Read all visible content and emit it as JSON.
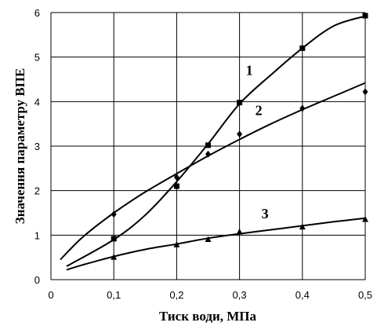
{
  "chart_data": {
    "type": "scatter",
    "xlabel": "Тиск води, МПа",
    "ylabel": "Значення параметру ВПЕ",
    "xlim": [
      0,
      0.5
    ],
    "ylim": [
      0,
      6
    ],
    "x_ticks": [
      0,
      0.1,
      0.2,
      0.3,
      0.4,
      0.5
    ],
    "x_tick_labels": [
      "0",
      "0,1",
      "0,2",
      "0,3",
      "0,4",
      "0,5"
    ],
    "y_ticks": [
      0,
      1,
      2,
      3,
      4,
      5,
      6
    ],
    "y_tick_labels": [
      "0",
      "1",
      "2",
      "3",
      "4",
      "5",
      "6"
    ],
    "grid": true,
    "series": [
      {
        "name": "1",
        "marker": "square",
        "points": [
          {
            "x": 0.1,
            "y": 0.92
          },
          {
            "x": 0.2,
            "y": 2.1
          },
          {
            "x": 0.25,
            "y": 3.02
          },
          {
            "x": 0.3,
            "y": 3.98
          },
          {
            "x": 0.4,
            "y": 5.2
          },
          {
            "x": 0.5,
            "y": 5.93
          }
        ],
        "trend": [
          {
            "x": 0.025,
            "y": 0.3
          },
          {
            "x": 0.1,
            "y": 0.9
          },
          {
            "x": 0.15,
            "y": 1.45
          },
          {
            "x": 0.2,
            "y": 2.2
          },
          {
            "x": 0.25,
            "y": 3.05
          },
          {
            "x": 0.3,
            "y": 3.95
          },
          {
            "x": 0.35,
            "y": 4.6
          },
          {
            "x": 0.4,
            "y": 5.2
          },
          {
            "x": 0.45,
            "y": 5.7
          },
          {
            "x": 0.5,
            "y": 5.92
          }
        ],
        "label_at": {
          "x": 0.31,
          "y": 4.6
        }
      },
      {
        "name": "2",
        "marker": "diamond",
        "points": [
          {
            "x": 0.1,
            "y": 1.47
          },
          {
            "x": 0.2,
            "y": 2.3
          },
          {
            "x": 0.25,
            "y": 2.82
          },
          {
            "x": 0.3,
            "y": 3.27
          },
          {
            "x": 0.4,
            "y": 3.85
          },
          {
            "x": 0.5,
            "y": 4.22
          }
        ],
        "trend": [
          {
            "x": 0.015,
            "y": 0.45
          },
          {
            "x": 0.05,
            "y": 0.95
          },
          {
            "x": 0.1,
            "y": 1.5
          },
          {
            "x": 0.15,
            "y": 1.97
          },
          {
            "x": 0.2,
            "y": 2.38
          },
          {
            "x": 0.25,
            "y": 2.78
          },
          {
            "x": 0.3,
            "y": 3.15
          },
          {
            "x": 0.35,
            "y": 3.5
          },
          {
            "x": 0.4,
            "y": 3.82
          },
          {
            "x": 0.45,
            "y": 4.12
          },
          {
            "x": 0.5,
            "y": 4.42
          }
        ],
        "label_at": {
          "x": 0.325,
          "y": 3.7
        }
      },
      {
        "name": "3",
        "marker": "triangle",
        "points": [
          {
            "x": 0.1,
            "y": 0.5
          },
          {
            "x": 0.2,
            "y": 0.78
          },
          {
            "x": 0.25,
            "y": 0.9
          },
          {
            "x": 0.3,
            "y": 1.07
          },
          {
            "x": 0.4,
            "y": 1.18
          },
          {
            "x": 0.5,
            "y": 1.35
          }
        ],
        "trend": [
          {
            "x": 0.025,
            "y": 0.22
          },
          {
            "x": 0.05,
            "y": 0.33
          },
          {
            "x": 0.1,
            "y": 0.52
          },
          {
            "x": 0.15,
            "y": 0.68
          },
          {
            "x": 0.2,
            "y": 0.8
          },
          {
            "x": 0.25,
            "y": 0.93
          },
          {
            "x": 0.3,
            "y": 1.03
          },
          {
            "x": 0.35,
            "y": 1.12
          },
          {
            "x": 0.4,
            "y": 1.21
          },
          {
            "x": 0.45,
            "y": 1.3
          },
          {
            "x": 0.5,
            "y": 1.38
          }
        ],
        "label_at": {
          "x": 0.335,
          "y": 1.38
        }
      }
    ]
  }
}
